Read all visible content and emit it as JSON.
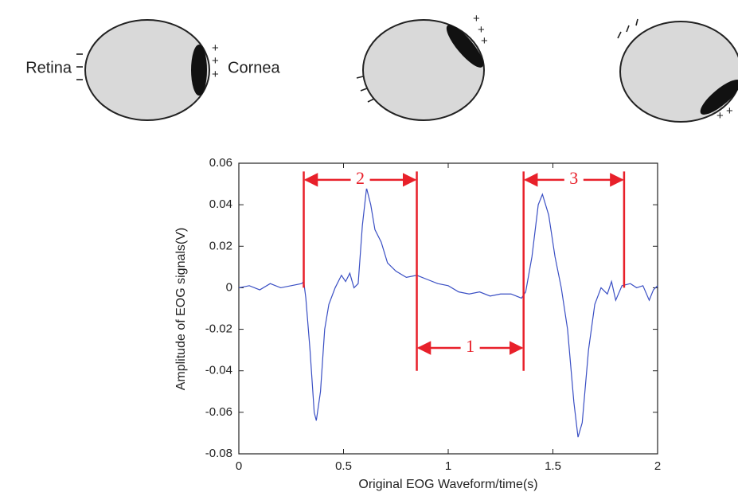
{
  "diagram": {
    "labels": [
      "Retina",
      "Cornea"
    ]
  },
  "chart_data": {
    "type": "line",
    "xlabel": "Original EOG Waveform/time(s)",
    "ylabel": "Amplitude of EOG signals(V)",
    "xlim": [
      0,
      2
    ],
    "xticks": [
      0,
      0.5,
      1,
      1.5,
      2
    ],
    "ylim": [
      -0.08,
      0.06
    ],
    "yticks": [
      -0.08,
      -0.06,
      -0.04,
      -0.02,
      0,
      0.02,
      0.04,
      0.06
    ],
    "x": [
      0,
      0.05,
      0.1,
      0.15,
      0.2,
      0.25,
      0.3,
      0.31,
      0.32,
      0.34,
      0.36,
      0.37,
      0.39,
      0.41,
      0.43,
      0.46,
      0.49,
      0.51,
      0.53,
      0.55,
      0.57,
      0.59,
      0.61,
      0.63,
      0.65,
      0.68,
      0.71,
      0.75,
      0.8,
      0.85,
      0.9,
      0.95,
      1.0,
      1.05,
      1.1,
      1.15,
      1.2,
      1.25,
      1.3,
      1.35,
      1.37,
      1.4,
      1.43,
      1.45,
      1.48,
      1.51,
      1.54,
      1.57,
      1.6,
      1.62,
      1.64,
      1.67,
      1.7,
      1.73,
      1.76,
      1.78,
      1.8,
      1.83,
      1.87,
      1.9,
      1.93,
      1.96,
      1.98,
      2.0
    ],
    "series": [
      {
        "color": "#3a4fc4",
        "values": [
          0.0,
          0.001,
          -0.001,
          0.002,
          0.0,
          0.001,
          0.002,
          0.003,
          -0.005,
          -0.03,
          -0.06,
          -0.064,
          -0.05,
          -0.02,
          -0.008,
          0.0,
          0.006,
          0.003,
          0.007,
          0.0,
          0.002,
          0.03,
          0.048,
          0.04,
          0.028,
          0.022,
          0.012,
          0.008,
          0.005,
          0.006,
          0.004,
          0.002,
          0.001,
          -0.002,
          -0.003,
          -0.002,
          -0.004,
          -0.003,
          -0.003,
          -0.005,
          -0.002,
          0.015,
          0.04,
          0.045,
          0.035,
          0.015,
          0.0,
          -0.02,
          -0.055,
          -0.072,
          -0.065,
          -0.03,
          -0.008,
          0.0,
          -0.003,
          0.003,
          -0.006,
          0.001,
          0.002,
          0.0,
          0.001,
          -0.006,
          -0.001,
          0.001
        ]
      }
    ],
    "annotation_color": "#e8202a",
    "markers": [
      {
        "x": 0.31,
        "y": [
          0,
          0.056
        ]
      },
      {
        "x": 0.85,
        "y": [
          -0.04,
          0.056
        ]
      },
      {
        "x": 1.36,
        "y": [
          -0.04,
          0.056
        ]
      },
      {
        "x": 1.84,
        "y": [
          0,
          0.056
        ]
      }
    ],
    "annotations": [
      {
        "label": "2",
        "x": [
          0.31,
          0.85
        ],
        "y": 0.052
      },
      {
        "label": "1",
        "x": [
          0.85,
          1.36
        ],
        "y": -0.029
      },
      {
        "label": "3",
        "x": [
          1.36,
          1.84
        ],
        "y": 0.052
      }
    ]
  }
}
